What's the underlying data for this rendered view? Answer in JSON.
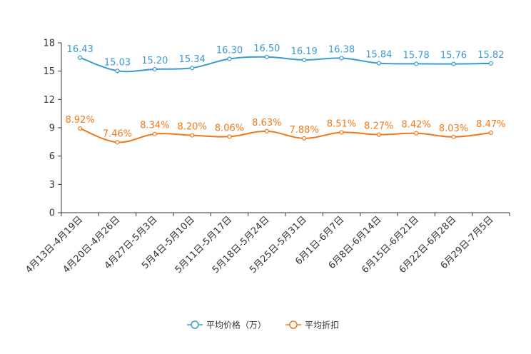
{
  "chart_data": {
    "type": "line",
    "title": "",
    "xlabel": "",
    "ylabel": "",
    "ylim": [
      0,
      18
    ],
    "yticks": [
      0,
      3,
      6,
      9,
      12,
      15,
      18
    ],
    "grid": false,
    "legend_position": "bottom-center",
    "categories": [
      "4月13日-4月19日",
      "4月20日-4月26日",
      "4月27日-5月3日",
      "5月4日-5月10日",
      "5月11日-5月17日",
      "5月18日-5月24日",
      "5月25日-5月31日",
      "6月1日-6月7日",
      "6月8日-6月14日",
      "6月15日-6月21日",
      "6月22日-6月28日",
      "6月29日-7月5日"
    ],
    "series": [
      {
        "name": "平均价格（万）",
        "color": "#3a9bd2",
        "values": [
          16.43,
          15.03,
          15.2,
          15.34,
          16.3,
          16.5,
          16.19,
          16.38,
          15.84,
          15.78,
          15.76,
          15.82
        ],
        "labels": [
          "16.43",
          "15.03",
          "15.20",
          "15.34",
          "16.30",
          "16.50",
          "16.19",
          "16.38",
          "15.84",
          "15.78",
          "15.76",
          "15.82"
        ]
      },
      {
        "name": "平均折扣",
        "color": "#f07818",
        "values": [
          8.92,
          7.46,
          8.34,
          8.2,
          8.06,
          8.63,
          7.88,
          8.51,
          8.27,
          8.42,
          8.03,
          8.47
        ],
        "labels": [
          "8.92%",
          "7.46%",
          "8.34%",
          "8.20%",
          "8.06%",
          "8.63%",
          "7.88%",
          "8.51%",
          "8.27%",
          "8.42%",
          "8.03%",
          "8.47%"
        ]
      }
    ]
  }
}
